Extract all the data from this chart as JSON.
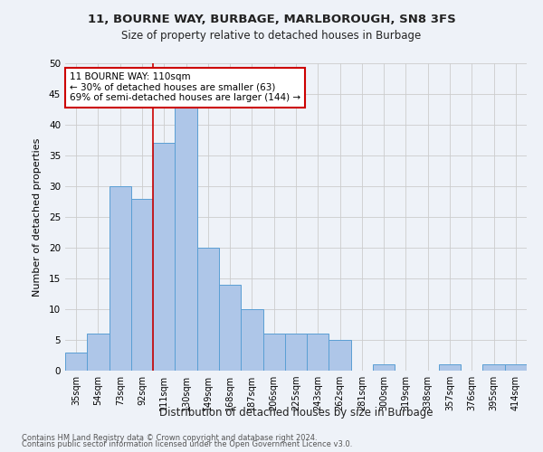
{
  "title1": "11, BOURNE WAY, BURBAGE, MARLBOROUGH, SN8 3FS",
  "title2": "Size of property relative to detached houses in Burbage",
  "xlabel": "Distribution of detached houses by size in Burbage",
  "ylabel": "Number of detached properties",
  "categories": [
    "35sqm",
    "54sqm",
    "73sqm",
    "92sqm",
    "111sqm",
    "130sqm",
    "149sqm",
    "168sqm",
    "187sqm",
    "206sqm",
    "225sqm",
    "243sqm",
    "262sqm",
    "281sqm",
    "300sqm",
    "319sqm",
    "338sqm",
    "357sqm",
    "376sqm",
    "395sqm",
    "414sqm"
  ],
  "values": [
    3,
    6,
    30,
    28,
    37,
    43,
    20,
    14,
    10,
    6,
    6,
    6,
    5,
    0,
    1,
    0,
    0,
    1,
    0,
    1,
    1
  ],
  "bar_color": "#aec6e8",
  "bar_edge_color": "#5a9fd4",
  "highlight_index": 4,
  "highlight_line_color": "#cc0000",
  "annotation_line1": "11 BOURNE WAY: 110sqm",
  "annotation_line2": "← 30% of detached houses are smaller (63)",
  "annotation_line3": "69% of semi-detached houses are larger (144) →",
  "annotation_box_color": "#ffffff",
  "annotation_box_edge": "#cc0000",
  "ylim": [
    0,
    50
  ],
  "yticks": [
    0,
    5,
    10,
    15,
    20,
    25,
    30,
    35,
    40,
    45,
    50
  ],
  "grid_color": "#cccccc",
  "bg_color": "#eef2f8",
  "footnote1": "Contains HM Land Registry data © Crown copyright and database right 2024.",
  "footnote2": "Contains public sector information licensed under the Open Government Licence v3.0."
}
